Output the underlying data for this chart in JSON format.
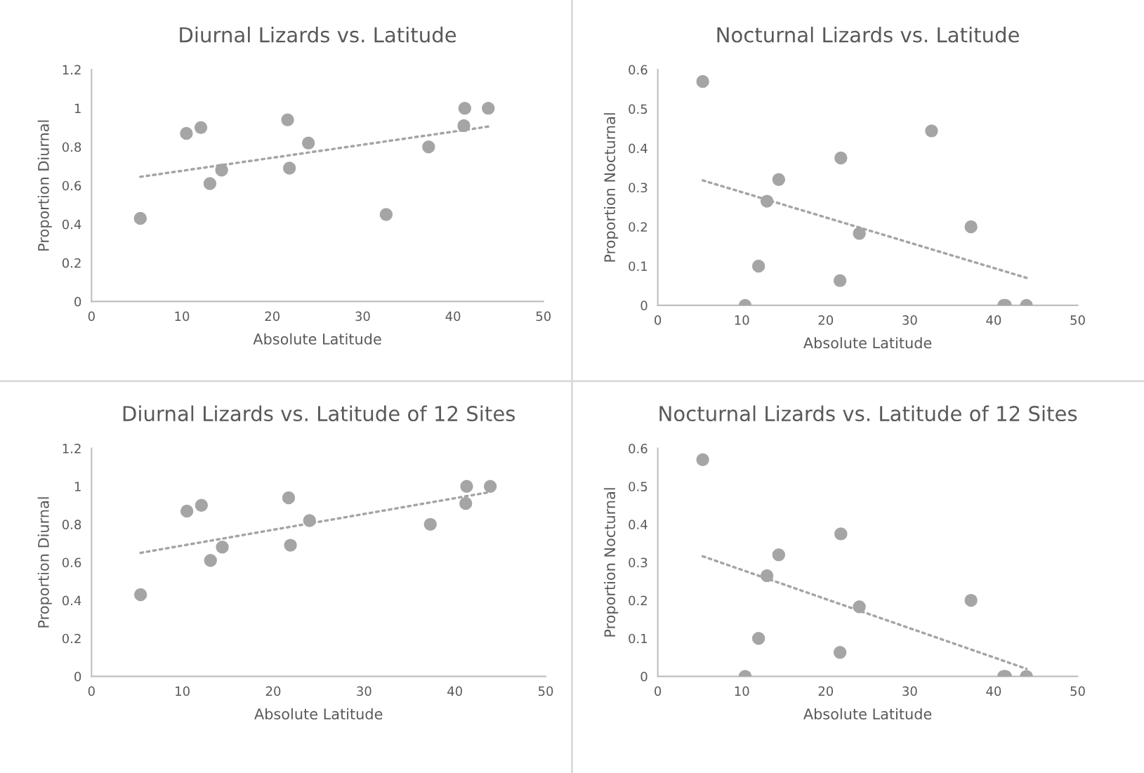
{
  "chart_data": [
    {
      "type": "scatter",
      "title": "Diurnal Lizards vs. Latitude",
      "xlabel": "Absolute Latitude",
      "ylabel": "Proportion Diurnal",
      "xlim": [
        0,
        50
      ],
      "xticks": [
        0,
        10,
        20,
        30,
        40,
        50
      ],
      "ylim": [
        0,
        1.2
      ],
      "yticks": [
        0,
        0.2,
        0.4,
        0.6,
        0.8,
        1,
        1.2
      ],
      "grid": false,
      "legend": false,
      "marker": "circle",
      "series": [
        {
          "color": "#a5a5a5",
          "x": [
            5.4,
            10.5,
            12.1,
            13.1,
            14.4,
            21.7,
            21.9,
            24.0,
            32.6,
            37.3,
            41.3,
            41.2,
            43.9
          ],
          "values": [
            0.43,
            0.87,
            0.9,
            0.61,
            0.68,
            0.94,
            0.69,
            0.82,
            0.45,
            0.8,
            1.0,
            0.91,
            1.0
          ]
        },
        {
          "type": "line",
          "line_style": "dotted",
          "marker": "none",
          "color": "#a5a5a5",
          "x": [
            5.4,
            43.9
          ],
          "values": [
            0.645,
            0.905
          ]
        }
      ]
    },
    {
      "type": "scatter",
      "title": "Nocturnal Lizards vs. Latitude",
      "xlabel": "Absolute Latitude",
      "ylabel": "Proportion Nocturnal",
      "xlim": [
        0,
        50
      ],
      "xticks": [
        0,
        10,
        20,
        30,
        40,
        50
      ],
      "ylim": [
        0,
        0.6
      ],
      "yticks": [
        0,
        0.1,
        0.2,
        0.3,
        0.4,
        0.5,
        0.6
      ],
      "grid": false,
      "legend": false,
      "marker": "circle",
      "series": [
        {
          "color": "#a5a5a5",
          "x": [
            5.35,
            10.4,
            12.0,
            13.0,
            14.4,
            21.8,
            21.7,
            24.0,
            32.6,
            37.3,
            41.2,
            41.4,
            43.9
          ],
          "values": [
            0.57,
            0,
            0.1,
            0.265,
            0.32,
            0.375,
            0.063,
            0.183,
            0.444,
            0.2,
            0,
            0,
            0
          ]
        },
        {
          "type": "line",
          "line_style": "dotted",
          "marker": "none",
          "color": "#a5a5a5",
          "x": [
            5.35,
            43.9
          ],
          "values": [
            0.318,
            0.07
          ]
        }
      ]
    },
    {
      "type": "scatter",
      "title": "Diurnal Lizards vs. Latitude of 12 Sites",
      "xlabel": "Absolute Latitude",
      "ylabel": "Proportion Diurnal",
      "xlim": [
        0,
        50
      ],
      "xticks": [
        0,
        10,
        20,
        30,
        40,
        50
      ],
      "ylim": [
        0,
        1.2
      ],
      "yticks": [
        0,
        0.2,
        0.4,
        0.6,
        0.8,
        1,
        1.2
      ],
      "grid": false,
      "legend": false,
      "marker": "circle",
      "series": [
        {
          "color": "#a5a5a5",
          "x": [
            5.4,
            10.5,
            12.1,
            13.1,
            14.4,
            21.7,
            21.9,
            24.0,
            37.3,
            41.3,
            41.2,
            43.9
          ],
          "values": [
            0.43,
            0.87,
            0.9,
            0.61,
            0.68,
            0.94,
            0.69,
            0.82,
            0.8,
            1.0,
            0.91,
            1.0
          ]
        },
        {
          "type": "line",
          "line_style": "dotted",
          "marker": "none",
          "color": "#a5a5a5",
          "x": [
            5.4,
            43.9
          ],
          "values": [
            0.65,
            0.97
          ]
        }
      ]
    },
    {
      "type": "scatter",
      "title": "Nocturnal Lizards vs. Latitude of 12 Sites",
      "xlabel": "Absolute Latitude",
      "ylabel": "Proportion Nocturnal",
      "xlim": [
        0,
        50
      ],
      "xticks": [
        0,
        10,
        20,
        30,
        40,
        50
      ],
      "ylim": [
        0,
        0.6
      ],
      "yticks": [
        0,
        0.1,
        0.2,
        0.3,
        0.4,
        0.5,
        0.6
      ],
      "grid": false,
      "legend": false,
      "marker": "circle",
      "series": [
        {
          "color": "#a5a5a5",
          "x": [
            5.35,
            10.4,
            12.0,
            13.0,
            14.4,
            21.8,
            21.7,
            24.0,
            37.3,
            41.2,
            41.4,
            43.9
          ],
          "values": [
            0.57,
            0,
            0.1,
            0.265,
            0.32,
            0.375,
            0.063,
            0.183,
            0.2,
            0,
            0,
            0
          ]
        },
        {
          "type": "line",
          "line_style": "dotted",
          "marker": "none",
          "color": "#a5a5a5",
          "x": [
            5.35,
            43.9
          ],
          "values": [
            0.316,
            0.02
          ]
        }
      ]
    }
  ]
}
